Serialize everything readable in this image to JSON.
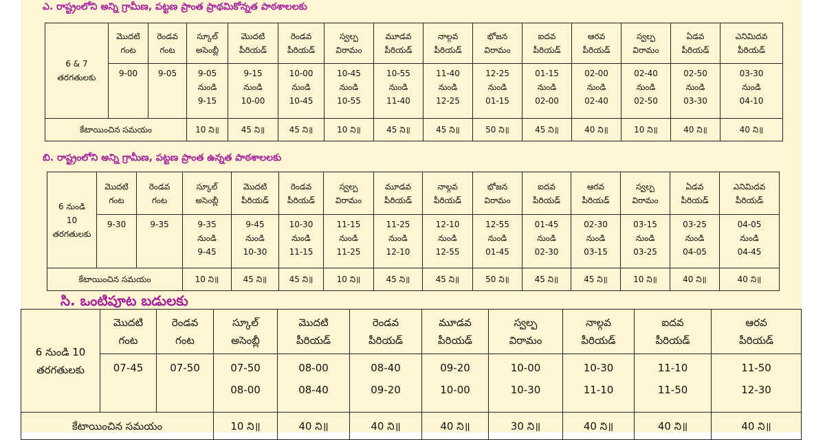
{
  "page_background": "#fef5d2",
  "title_color": "#a2249c",
  "sections": [
    {
      "title": "ఎ. రాష్ట్రంలోని అన్ని గ్రామీణ, పట్టణ ప్రాంత ప్రాథమికోన్నత పాఠశాలలకు",
      "class_label": [
        "6 & 7",
        "తరగతులకు"
      ],
      "headers": [
        [
          "మొదటి",
          "గంట"
        ],
        [
          "రెండవ",
          "గంట"
        ],
        [
          "స్కూల్",
          "అసెంబ్లీ"
        ],
        [
          "మొదటి",
          "పీరియడ్"
        ],
        [
          "రెండవ",
          "పీరియడ్"
        ],
        [
          "స్వల్ప",
          "విరామం"
        ],
        [
          "మూడవ",
          "పీరియడ్"
        ],
        [
          "నాల్గవ",
          "పీరియడ్"
        ],
        [
          "భోజన",
          "విరామం"
        ],
        [
          "ఐదవ",
          "పీరియడ్"
        ],
        [
          "ఆరవ",
          "పీరియడ్"
        ],
        [
          "స్వల్ప",
          "విరామం"
        ],
        [
          "ఏడవ",
          "పీరియడ్"
        ],
        [
          "ఎనిమిదవ",
          "పీరియడ్"
        ]
      ],
      "times": [
        [
          "9-00"
        ],
        [
          "9-05"
        ],
        [
          "9-05",
          "నుండి",
          "9-15"
        ],
        [
          "9-15",
          "నుండి",
          "10-00"
        ],
        [
          "10-00",
          "నుండి",
          "10-45"
        ],
        [
          "10-45",
          "నుండి",
          "10-55"
        ],
        [
          "10-55",
          "నుండి",
          "11-40"
        ],
        [
          "11-40",
          "నుండి",
          "12-25"
        ],
        [
          "12-25",
          "నుండి",
          "01-15"
        ],
        [
          "01-15",
          "నుండి",
          "02-00"
        ],
        [
          "02-00",
          "నుండి",
          "02-40"
        ],
        [
          "02-40",
          "నుండి",
          "02-50"
        ],
        [
          "02-50",
          "నుండి",
          "03-30"
        ],
        [
          "03-30",
          "నుండి",
          "04-10"
        ]
      ],
      "allotted_label": "కేటాయించిన సమయం",
      "allotted": [
        "10 ని॥",
        "45 ని॥",
        "45 ని॥",
        "10 ని॥",
        "45 ని॥",
        "45 ని॥",
        "50 ని॥",
        "45 ని॥",
        "40 ని॥",
        "10 ని॥",
        "40 ని॥",
        "40 ని॥"
      ]
    },
    {
      "title": "బి. రాష్ట్రంలోని అన్ని గ్రామీణ, పట్టణ ప్రాంత ఉన్నత పాఠశాలలకు",
      "class_label": [
        "6 నుండి",
        "10",
        "తరగతులకు"
      ],
      "headers": [
        [
          "మొదటి",
          "గంట"
        ],
        [
          "రెండవ",
          "గంట"
        ],
        [
          "స్కూల్",
          "అసెంబ్లీ"
        ],
        [
          "మొదటి",
          "పీరియడ్"
        ],
        [
          "రెండవ",
          "పీరియడ్"
        ],
        [
          "స్వల్ప",
          "విరామం"
        ],
        [
          "మూడవ",
          "పీరియడ్"
        ],
        [
          "నాల్గవ",
          "పీరియడ్"
        ],
        [
          "భోజన",
          "విరామం"
        ],
        [
          "ఐదవ",
          "పీరియడ్"
        ],
        [
          "ఆరవ",
          "పీరియడ్"
        ],
        [
          "స్వల్ప",
          "విరామం"
        ],
        [
          "ఏడవ",
          "పీరియడ్"
        ],
        [
          "ఎనిమిదవ",
          "పీరియడ్"
        ]
      ],
      "times": [
        [
          "9-30"
        ],
        [
          "9-35"
        ],
        [
          "9-35",
          "నుండి",
          "9-45"
        ],
        [
          "9-45",
          "నుండి",
          "10-30"
        ],
        [
          "10-30",
          "నుండి",
          "11-15"
        ],
        [
          "11-15",
          "నుండి",
          "11-25"
        ],
        [
          "11-25",
          "నుండి",
          "12-10"
        ],
        [
          "12-10",
          "నుండి",
          "12-55"
        ],
        [
          "12-55",
          "నుండి",
          "01-45"
        ],
        [
          "01-45",
          "నుండి",
          "02-30"
        ],
        [
          "02-30",
          "నుండి",
          "03-15"
        ],
        [
          "03-15",
          "నుండి",
          "03-25"
        ],
        [
          "03-25",
          "నుండి",
          "04-05"
        ],
        [
          "04-05",
          "నుండి",
          "04-45"
        ]
      ],
      "allotted_label": "కేటాయించిన సమయం",
      "allotted": [
        "10 ని॥",
        "45 ని॥",
        "45 ని॥",
        "10 ని॥",
        "45 ని॥",
        "45 ని॥",
        "50 ని॥",
        "45 ని॥",
        "45 ని॥",
        "10 ని॥",
        "40 ని॥",
        "40 ని॥"
      ]
    },
    {
      "title": "సి. ఒంటిపూట బడులకు",
      "class_label": [
        "6 నుండి 10",
        "తరగతులకు"
      ],
      "headers": [
        [
          "మొదటి",
          "గంట"
        ],
        [
          "రెండవ",
          "గంట"
        ],
        [
          "స్కూల్",
          "అసెంబ్లీ"
        ],
        [
          "మొదటి",
          "పీరియడ్"
        ],
        [
          "రెండవ",
          "పీరియడ్"
        ],
        [
          "మూడవ",
          "పీరియడ్"
        ],
        [
          "స్వల్ప",
          "విరామం"
        ],
        [
          "నాల్గవ",
          "పీరియడ్"
        ],
        [
          "ఐదవ",
          "పీరియడ్"
        ],
        [
          "ఆరవ",
          "పీరియడ్"
        ]
      ],
      "times": [
        [
          "07-45"
        ],
        [
          "07-50"
        ],
        [
          "07-50",
          "08-00"
        ],
        [
          "08-00",
          "08-40"
        ],
        [
          "08-40",
          "09-20"
        ],
        [
          "09-20",
          "10-00"
        ],
        [
          "10-00",
          "10-30"
        ],
        [
          "10-30",
          "11-10"
        ],
        [
          "11-10",
          "11-50"
        ],
        [
          "11-50",
          "12-30"
        ]
      ],
      "allotted_label": "కేటాయించిన సమయం",
      "allotted": [
        "10 ని॥",
        "40 ని॥",
        "40 ని॥",
        "40 ని॥",
        "30 ని॥",
        "40 ని॥",
        "40 ని॥",
        "40 ని॥"
      ]
    }
  ]
}
